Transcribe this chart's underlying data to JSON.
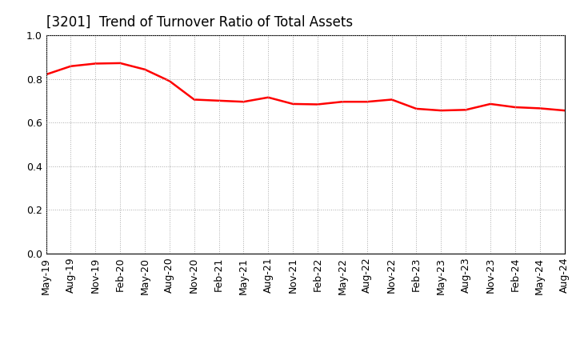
{
  "title": "[3201]  Trend of Turnover Ratio of Total Assets",
  "title_fontsize": 12,
  "line_color": "#ff0000",
  "line_width": 1.8,
  "background_color": "#ffffff",
  "grid_color": "#aaaaaa",
  "grid_linestyle": ":",
  "ylim": [
    0.0,
    1.0
  ],
  "yticks": [
    0.0,
    0.2,
    0.4,
    0.6,
    0.8,
    1.0
  ],
  "x_labels": [
    "May-19",
    "Aug-19",
    "Nov-19",
    "Feb-20",
    "May-20",
    "Aug-20",
    "Nov-20",
    "Feb-21",
    "May-21",
    "Aug-21",
    "Nov-21",
    "Feb-22",
    "May-22",
    "Aug-22",
    "Nov-22",
    "Feb-23",
    "May-23",
    "Aug-23",
    "Nov-23",
    "Feb-24",
    "May-24",
    "Aug-24"
  ],
  "values": [
    0.82,
    0.858,
    0.87,
    0.872,
    0.843,
    0.79,
    0.705,
    0.7,
    0.695,
    0.715,
    0.685,
    0.683,
    0.695,
    0.695,
    0.705,
    0.663,
    0.655,
    0.658,
    0.685,
    0.67,
    0.665,
    0.655
  ],
  "tick_fontsize": 9,
  "spine_color": "#000000"
}
